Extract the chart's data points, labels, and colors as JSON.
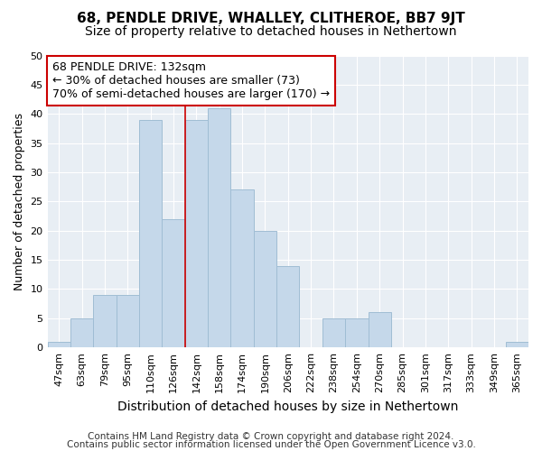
{
  "title": "68, PENDLE DRIVE, WHALLEY, CLITHEROE, BB7 9JT",
  "subtitle": "Size of property relative to detached houses in Nethertown",
  "xlabel": "Distribution of detached houses by size in Nethertown",
  "ylabel": "Number of detached properties",
  "categories": [
    "47sqm",
    "63sqm",
    "79sqm",
    "95sqm",
    "110sqm",
    "126sqm",
    "142sqm",
    "158sqm",
    "174sqm",
    "190sqm",
    "206sqm",
    "222sqm",
    "238sqm",
    "254sqm",
    "270sqm",
    "285sqm",
    "301sqm",
    "317sqm",
    "333sqm",
    "349sqm",
    "365sqm"
  ],
  "values": [
    1,
    5,
    9,
    9,
    39,
    22,
    39,
    41,
    27,
    20,
    14,
    0,
    5,
    5,
    6,
    0,
    0,
    0,
    0,
    0,
    1
  ],
  "bar_color": "#c5d8ea",
  "bar_edge_color": "#a0bdd4",
  "ylim": [
    0,
    50
  ],
  "yticks": [
    0,
    5,
    10,
    15,
    20,
    25,
    30,
    35,
    40,
    45,
    50
  ],
  "vline_x": 5.5,
  "vline_color": "#cc0000",
  "ann_line1": "68 PENDLE DRIVE: 132sqm",
  "ann_line2": "← 30% of detached houses are smaller (73)",
  "ann_line3": "70% of semi-detached houses are larger (170) →",
  "annotation_box_color": "#ffffff",
  "annotation_box_edge": "#cc0000",
  "footer_line1": "Contains HM Land Registry data © Crown copyright and database right 2024.",
  "footer_line2": "Contains public sector information licensed under the Open Government Licence v3.0.",
  "title_fontsize": 11,
  "subtitle_fontsize": 10,
  "xlabel_fontsize": 10,
  "ylabel_fontsize": 9,
  "tick_fontsize": 8,
  "ann_fontsize": 9,
  "footer_fontsize": 7.5,
  "background_color": "#ffffff",
  "plot_background": "#e8eef4",
  "grid_color": "#ffffff"
}
